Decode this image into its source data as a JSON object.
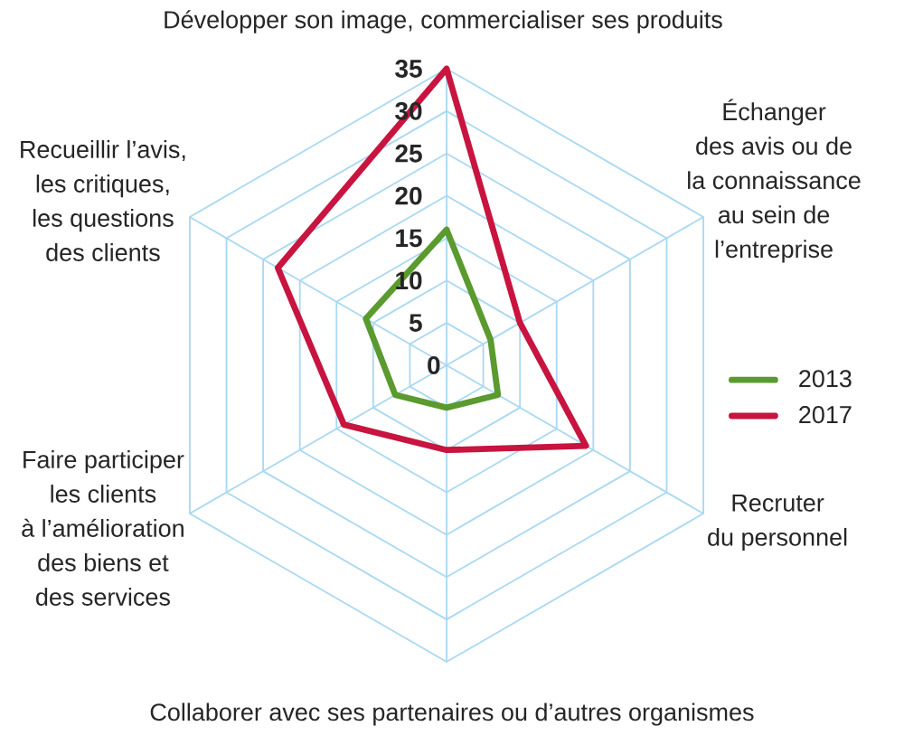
{
  "chart_data": {
    "type": "radar",
    "categories": [
      "Développer son image, commercialiser ses produits",
      "Échanger des avis ou de la connaissance au sein de l’entreprise",
      "Recruter du personnel",
      "Collaborer avec ses partenaires ou d’autres organismes",
      "Faire participer les clients à l’amélioration des biens et des services",
      "Recueillir l’avis, les critiques, les questions des clients"
    ],
    "series": [
      {
        "name": "2013",
        "color": "#5a9a2e",
        "values": [
          16,
          6,
          7,
          5,
          7,
          11
        ]
      },
      {
        "name": "2017",
        "color": "#c8143f",
        "values": [
          35,
          10,
          19,
          10,
          14,
          23
        ]
      }
    ],
    "ylim": [
      0,
      35
    ],
    "yticks": [
      0,
      5,
      10,
      15,
      20,
      25,
      30,
      35
    ],
    "grid": true,
    "legend": "right"
  }
}
